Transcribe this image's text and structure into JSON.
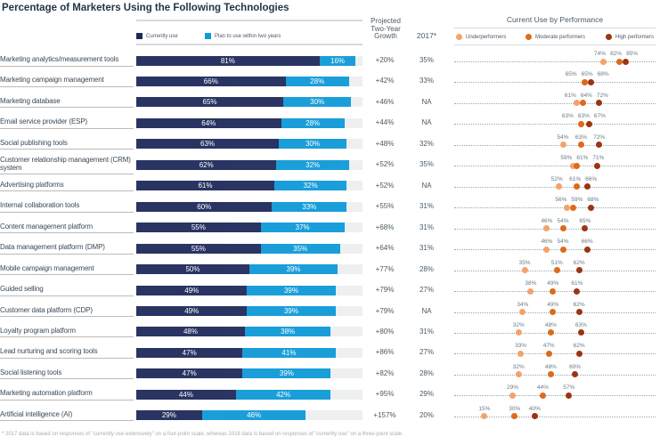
{
  "title": "Percentage of Marketers Using the Following Technologies",
  "footnote": "* 2017 data is based on responses of \"currently use extensively\" on a four-point scale, whereas 2018 data is based on responses of \"currently use\" on a three-point scale.",
  "chart_data": [
    {
      "type": "bar",
      "stacked": true,
      "orientation": "horizontal",
      "legend_position": "top",
      "colors": {
        "Currently use": "#1f2a5c",
        "Plan to use within two years": "#0f9ad8",
        "track": "#eeeff1"
      },
      "xlim": [
        0,
        100
      ],
      "column_headers": {
        "growth": "Projected Two-Year Growth",
        "y2017": "2017*"
      },
      "categories": [
        "Marketing analytics/measurement tools",
        "Marketing campaign management",
        "Marketing database",
        "Email service provider (ESP)",
        "Social publishing tools",
        "Customer relationship management (CRM) system",
        "Advertising platforms",
        "Internal collaboration tools",
        "Content management platform",
        "Data management platform (DMP)",
        "Mobile campaign management",
        "Guided selling",
        "Customer data platform (CDP)",
        "Loyalty program platform",
        "Lead nurturing and scoring tools",
        "Social listening tools",
        "Marketing automation platform",
        "Artificial intelligence (AI)"
      ],
      "series": [
        {
          "name": "Currently use",
          "values": [
            81,
            66,
            65,
            64,
            63,
            62,
            61,
            60,
            55,
            55,
            50,
            49,
            49,
            48,
            47,
            47,
            44,
            29
          ]
        },
        {
          "name": "Plan to use within two years",
          "values": [
            16,
            28,
            30,
            28,
            30,
            32,
            32,
            33,
            37,
            35,
            39,
            39,
            39,
            38,
            41,
            39,
            42,
            46
          ]
        }
      ],
      "growth": [
        "+20%",
        "+42%",
        "+46%",
        "+44%",
        "+48%",
        "+52%",
        "+52%",
        "+55%",
        "+68%",
        "+64%",
        "+77%",
        "+79%",
        "+79%",
        "+80%",
        "+86%",
        "+82%",
        "+95%",
        "+157%"
      ],
      "y2017": [
        "35%",
        "33%",
        "NA",
        "NA",
        "32%",
        "35%",
        "NA",
        "31%",
        "31%",
        "31%",
        "28%",
        "27%",
        "NA",
        "31%",
        "27%",
        "28%",
        "29%",
        "20%"
      ]
    },
    {
      "type": "scatter",
      "title": "Current Use by Performance",
      "legend_position": "top",
      "xlim": [
        0,
        100
      ],
      "series": [
        {
          "name": "Underperformers",
          "color": "#f4a26b",
          "values": [
            74,
            65,
            61,
            63,
            54,
            59,
            52,
            56,
            46,
            46,
            35,
            38,
            34,
            32,
            33,
            32,
            29,
            15
          ]
        },
        {
          "name": "Moderate performers",
          "color": "#de6a1a",
          "values": [
            82,
            65,
            64,
            63,
            63,
            61,
            61,
            59,
            54,
            54,
            51,
            49,
            49,
            48,
            47,
            48,
            44,
            30
          ]
        },
        {
          "name": "High performers",
          "color": "#9b3412",
          "values": [
            85,
            68,
            72,
            67,
            72,
            71,
            66,
            68,
            65,
            66,
            62,
            61,
            62,
            63,
            62,
            60,
            57,
            40
          ]
        }
      ]
    }
  ]
}
